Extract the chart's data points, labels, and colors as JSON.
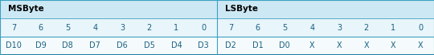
{
  "header_row_labels": [
    "MSByte",
    "LSByte"
  ],
  "bit_row": [
    "7",
    "6",
    "5",
    "4",
    "3",
    "2",
    "1",
    "0",
    "7",
    "6",
    "5",
    "4",
    "3",
    "2",
    "1",
    "0"
  ],
  "data_row": [
    "D10",
    "D9",
    "D8",
    "D7",
    "D6",
    "D5",
    "D4",
    "D3",
    "D2",
    "D1",
    "D0",
    "X",
    "X",
    "X",
    "X",
    "X"
  ],
  "n_cols": 16,
  "divider_col": 8,
  "header_bg": "#cce8f4",
  "bit_row_bg": "#e8f5fb",
  "data_row_bg": "#f5fbfd",
  "border_color": "#3aa0c0",
  "bottom_border_color": "#2080a0",
  "text_color": "#1a6080",
  "header_text_color": "#000000",
  "figwidth": 5.4,
  "figheight": 0.69,
  "dpi": 100,
  "header_fontsize": 7.5,
  "cell_fontsize": 7.0
}
